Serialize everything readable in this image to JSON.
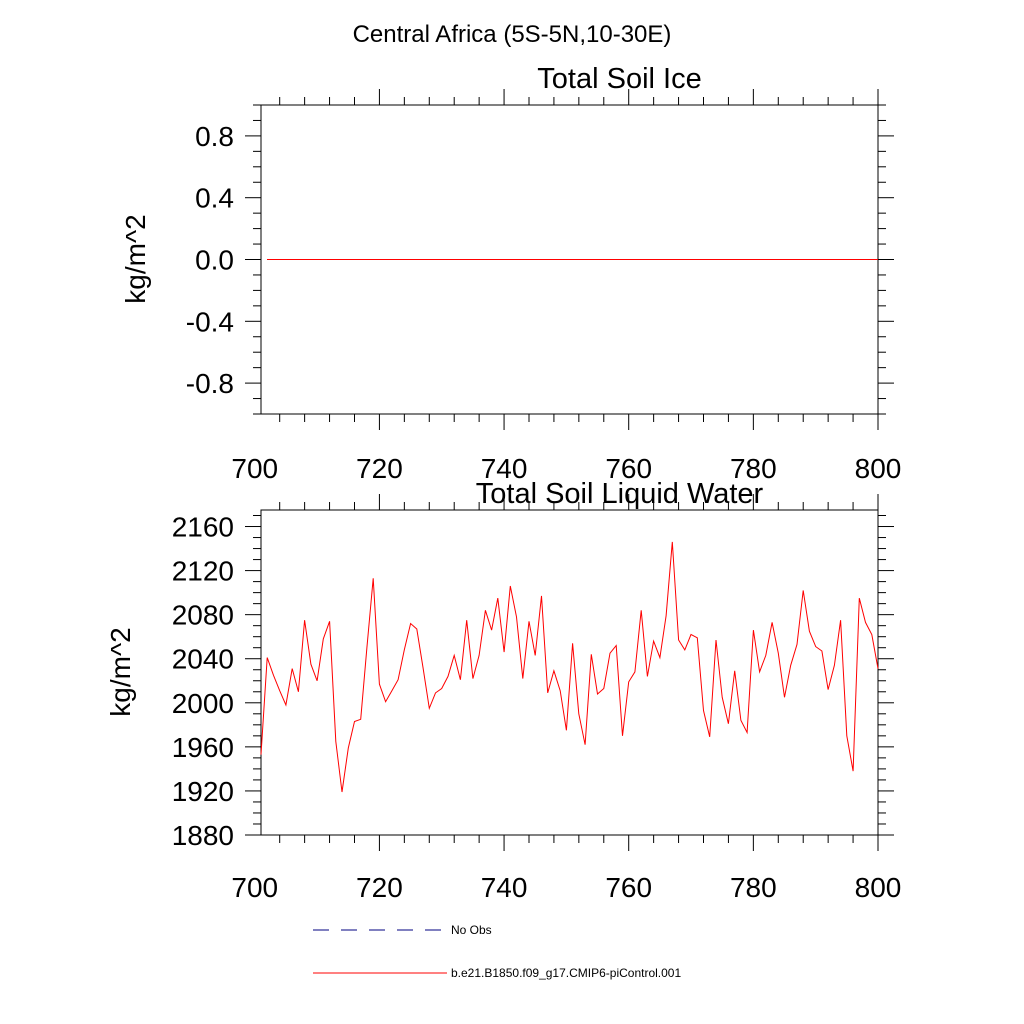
{
  "figure_title": "Central Africa (5S-5N,10-30E)",
  "chart_data": [
    {
      "type": "line",
      "title": "Total Soil Ice",
      "xlabel": "",
      "ylabel": "kg/m^2",
      "xlim": [
        701,
        800
      ],
      "ylim": [
        -1.0,
        1.0
      ],
      "x_ticks": [
        700,
        720,
        740,
        760,
        780,
        800
      ],
      "x_tick_labels": [
        "700",
        "720",
        "740",
        "760",
        "780",
        "800"
      ],
      "y_ticks": [
        -0.8,
        -0.4,
        0.0,
        0.4,
        0.8
      ],
      "y_tick_labels": [
        "-0.8",
        "-0.4",
        "0.0",
        "0.4",
        "0.8"
      ],
      "y_minor_step": 0.1,
      "x_minor_step": 4,
      "series": [
        {
          "name": "b.e21.B1850.f09_g17.CMIP6-piControl.001",
          "color": "#ff0000",
          "x_start": 701,
          "values": [
            0,
            0
          ]
        }
      ]
    },
    {
      "type": "line",
      "title": "Total Soil Liquid Water",
      "xlabel": "",
      "ylabel": "kg/m^2",
      "xlim": [
        701,
        800
      ],
      "ylim": [
        1880,
        2175
      ],
      "x_ticks": [
        700,
        720,
        740,
        760,
        780,
        800
      ],
      "x_tick_labels": [
        "700",
        "720",
        "740",
        "760",
        "780",
        "800"
      ],
      "y_ticks": [
        1880,
        1920,
        1960,
        2000,
        2040,
        2080,
        2120,
        2160
      ],
      "y_tick_labels": [
        "1880",
        "1920",
        "1960",
        "2000",
        "2040",
        "2080",
        "2120",
        "2160"
      ],
      "y_minor_step": 10,
      "x_minor_step": 4,
      "series": [
        {
          "name": "b.e21.B1850.f09_g17.CMIP6-piControl.001",
          "color": "#ff0000",
          "x_start": 701,
          "values": [
            1953,
            2041,
            2025,
            2011,
            1998,
            2031,
            2010,
            2075,
            2035,
            2020,
            2058,
            2074,
            1965,
            1919,
            1959,
            1983,
            1985,
            2050,
            2113,
            2017,
            2001,
            2011,
            2021,
            2048,
            2072,
            2067,
            2032,
            1995,
            2009,
            2013,
            2024,
            2043,
            2021,
            2075,
            2022,
            2043,
            2084,
            2066,
            2095,
            2046,
            2106,
            2078,
            2022,
            2074,
            2043,
            2097,
            2009,
            2029,
            2011,
            1975,
            2054,
            1990,
            1962,
            2044,
            2008,
            2013,
            2045,
            2052,
            1970,
            2019,
            2028,
            2084,
            2024,
            2056,
            2041,
            2079,
            2146,
            2057,
            2048,
            2062,
            2059,
            1993,
            1969,
            2057,
            2005,
            1981,
            2029,
            1984,
            1973,
            2066,
            2028,
            2043,
            2073,
            2045,
            2005,
            2034,
            2053,
            2102,
            2065,
            2051,
            2047,
            2012,
            2034,
            2075,
            1970,
            1938,
            2095,
            2073,
            2062,
            2031
          ]
        }
      ]
    }
  ],
  "legend": [
    {
      "label": "No Obs",
      "color": "#000080",
      "style": "dashed"
    },
    {
      "label": "b.e21.B1850.f09_g17.CMIP6-piControl.001",
      "color": "#ff0000",
      "style": "solid"
    }
  ]
}
